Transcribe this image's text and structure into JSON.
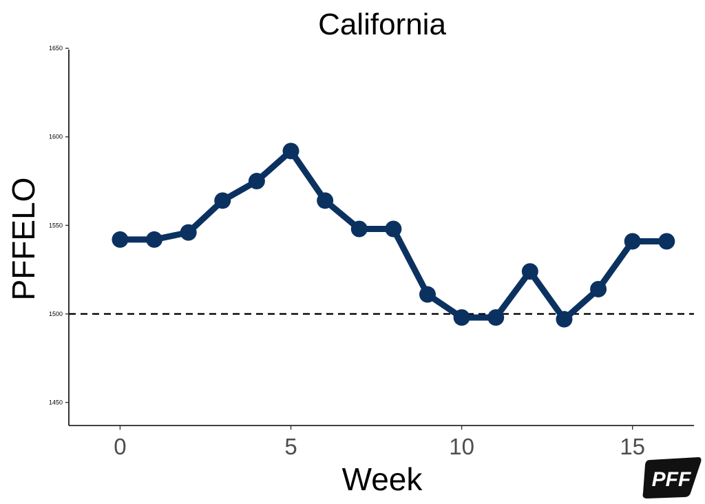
{
  "chart_data": {
    "type": "line",
    "title": "California",
    "xlabel": "Week",
    "ylabel": "PFFELO",
    "x": [
      0,
      1,
      2,
      3,
      4,
      5,
      6,
      7,
      8,
      9,
      10,
      11,
      12,
      13,
      14,
      15,
      16
    ],
    "series": [
      {
        "values": [
          1542,
          1542,
          1546,
          1564,
          1575,
          1592,
          1564,
          1548,
          1548,
          1511,
          1498,
          1498,
          1524,
          1497,
          1514,
          1541,
          1541
        ],
        "color": "#0b3160"
      }
    ],
    "reference_line": {
      "y": 1500,
      "style": "dashed",
      "color": "#000000"
    },
    "xlim": [
      -1.5,
      16.8
    ],
    "ylim": [
      1437,
      1652
    ],
    "xticks": [
      0,
      5,
      10,
      15
    ],
    "yticks": [
      1450,
      1500,
      1550,
      1600,
      1650
    ],
    "grid": false,
    "legend": "none"
  },
  "logo": {
    "text": "PFF"
  }
}
